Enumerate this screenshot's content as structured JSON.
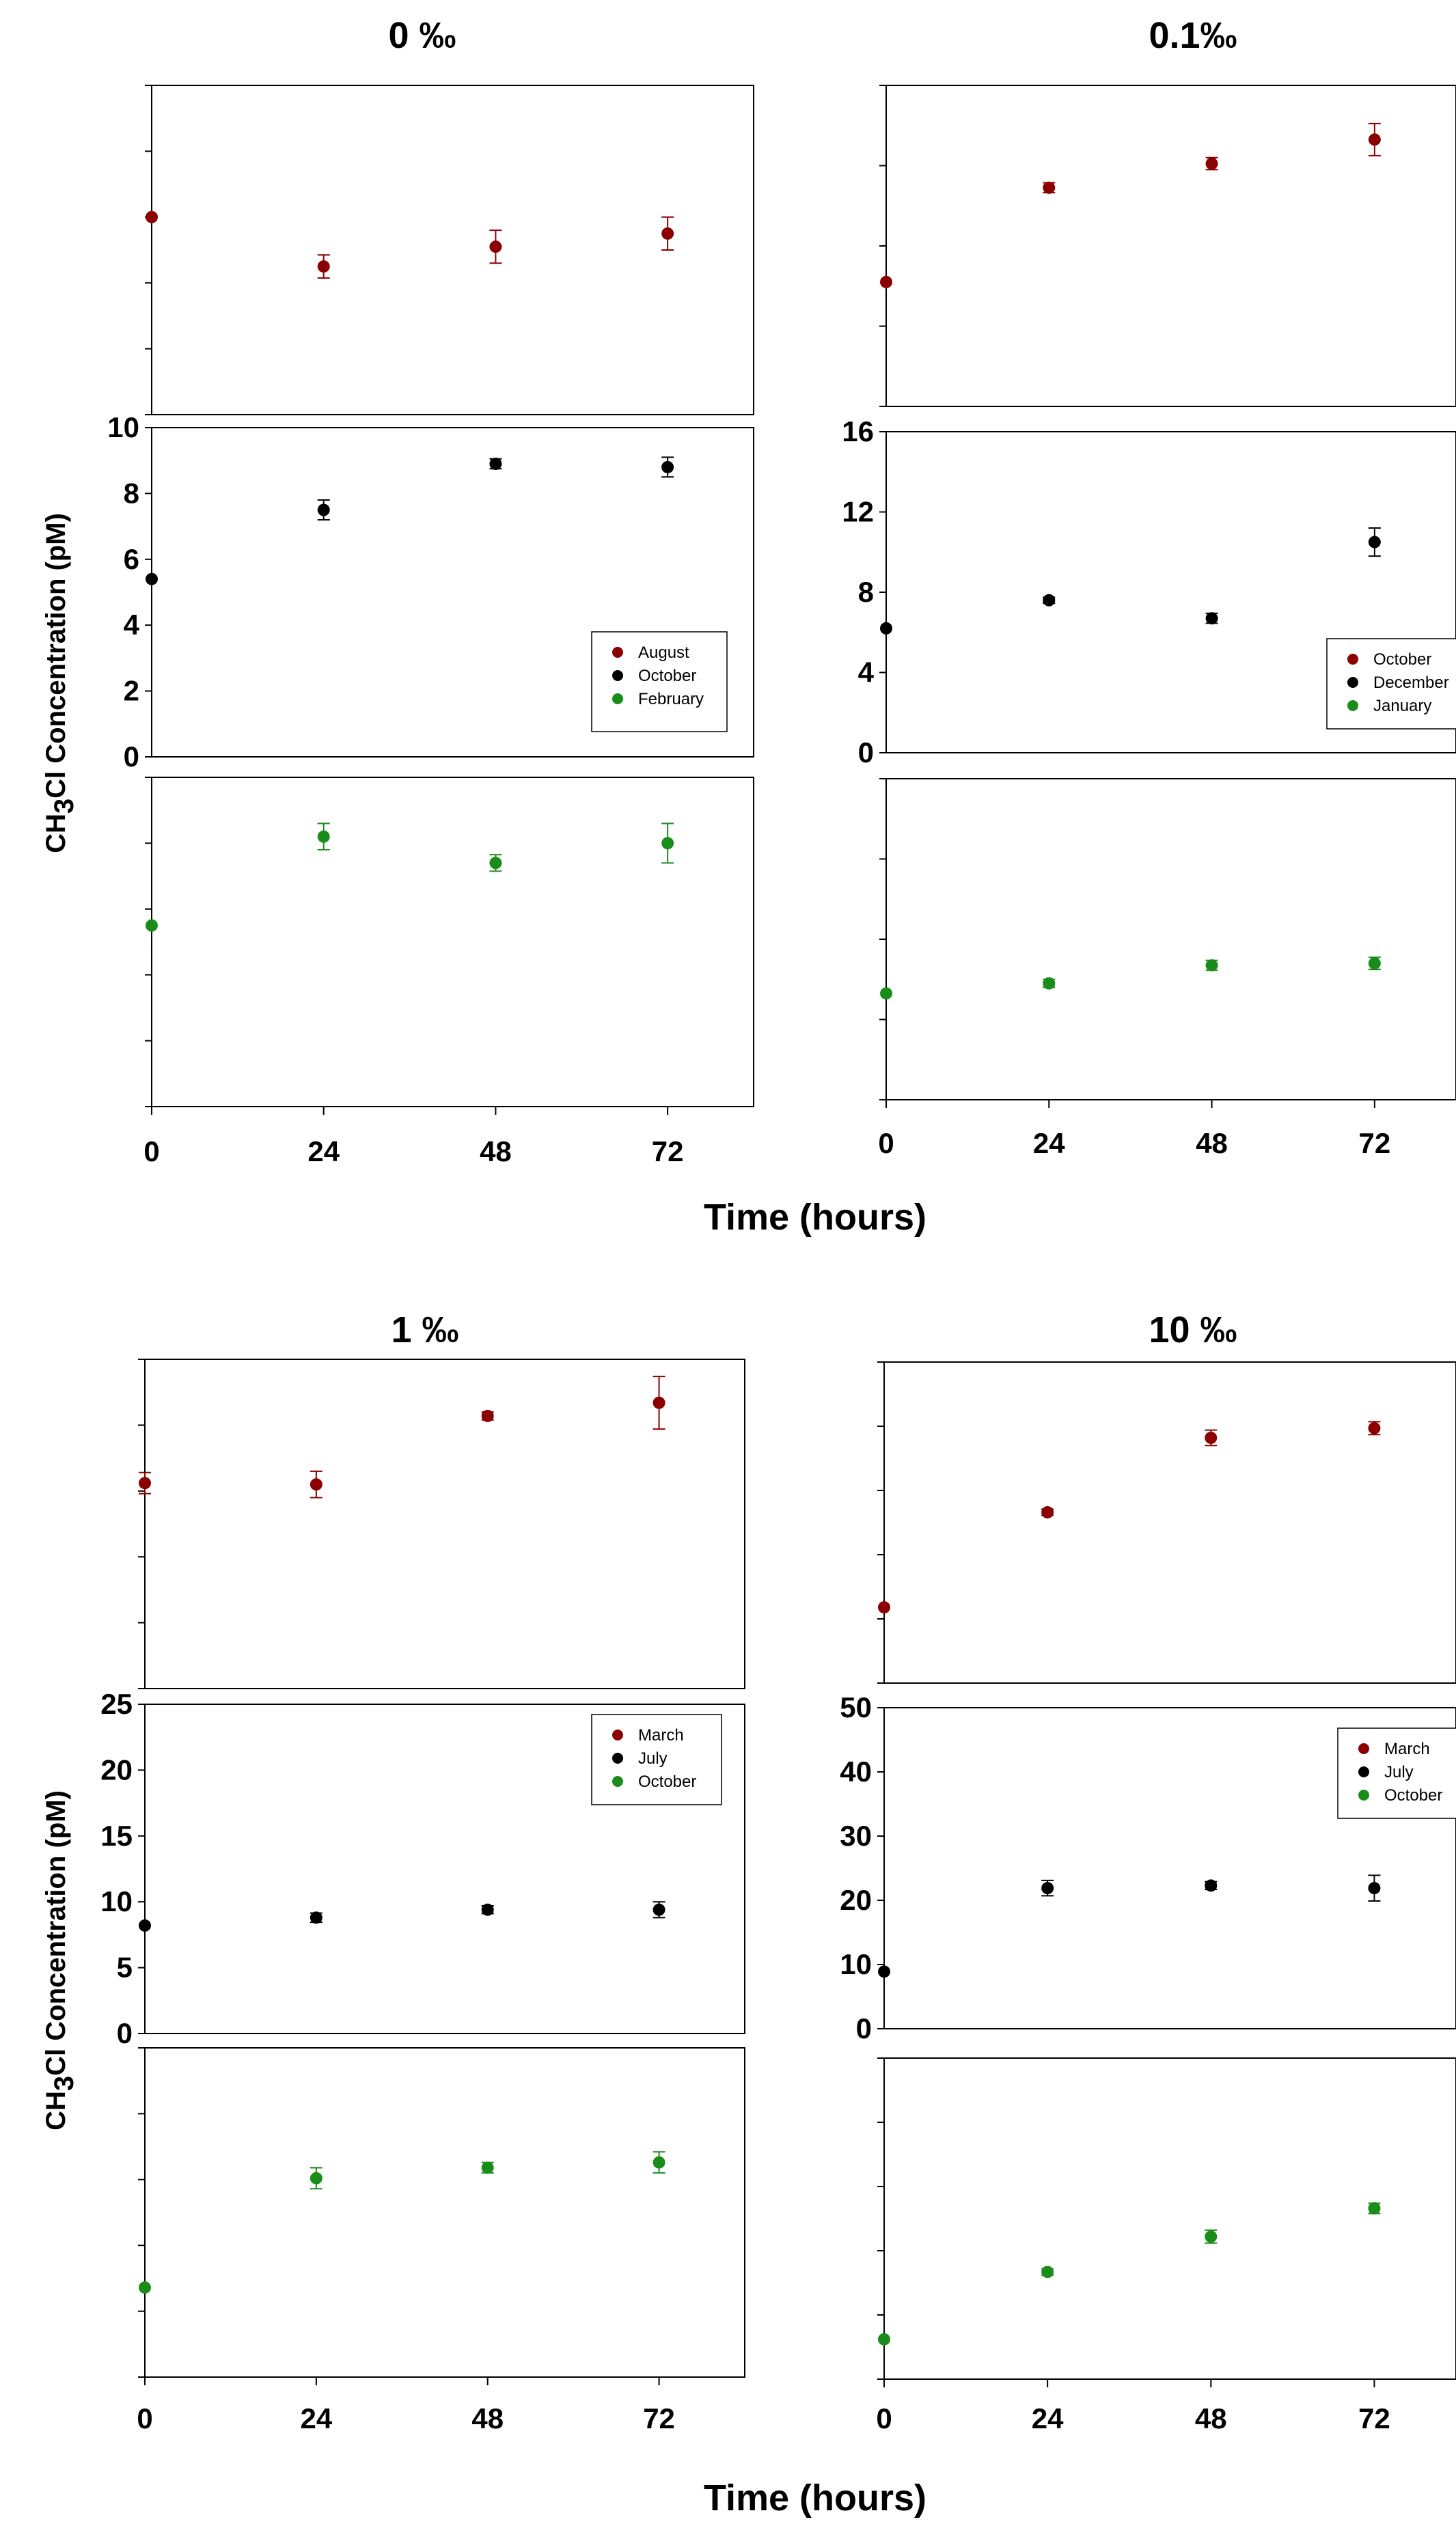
{
  "figure": {
    "ylabel_main": "CH",
    "ylabel_sub": "3",
    "ylabel_rest": "Cl Concentration (pM)",
    "xlabel": "Time (hours)",
    "colors": {
      "series1": "#8b0000",
      "series2": "#000000",
      "series3": "#1a8c1a"
    }
  },
  "chart_data": [
    {
      "type": "scatter",
      "title": "0 ‰",
      "x": [
        0,
        24,
        48,
        72
      ],
      "xticks": [
        "0",
        "24",
        "48",
        "72"
      ],
      "ylim": [
        0,
        10
      ],
      "yticks": [
        "0",
        "2",
        "4",
        "6",
        "8",
        "10"
      ],
      "series": [
        {
          "name": "August",
          "y": [
            6.0,
            4.5,
            5.1,
            5.5
          ],
          "err": [
            0.0,
            0.35,
            0.5,
            0.5
          ]
        },
        {
          "name": "October",
          "y": [
            5.4,
            7.5,
            8.9,
            8.8
          ],
          "err": [
            0.0,
            0.3,
            0.15,
            0.3
          ]
        },
        {
          "name": "February",
          "y": [
            5.5,
            8.2,
            7.4,
            8.0
          ],
          "err": [
            0.0,
            0.4,
            0.25,
            0.6
          ]
        }
      ]
    },
    {
      "type": "scatter",
      "title": "0.1‰",
      "x": [
        0,
        24,
        48,
        72
      ],
      "xticks": [
        "0",
        "24",
        "48",
        "72"
      ],
      "ylim": [
        0,
        16
      ],
      "yticks": [
        "0",
        "4",
        "8",
        "12",
        "16"
      ],
      "series": [
        {
          "name": "October",
          "y": [
            6.2,
            10.9,
            12.1,
            13.3
          ],
          "err": [
            0.0,
            0.25,
            0.3,
            0.8
          ]
        },
        {
          "name": "December",
          "y": [
            6.2,
            7.6,
            6.7,
            10.5
          ],
          "err": [
            0.0,
            0.15,
            0.25,
            0.7
          ]
        },
        {
          "name": "January",
          "y": [
            5.3,
            5.8,
            6.7,
            6.8
          ],
          "err": [
            0.0,
            0.2,
            0.25,
            0.3
          ]
        }
      ]
    },
    {
      "type": "scatter",
      "title": "1 ‰",
      "x": [
        0,
        24,
        48,
        72
      ],
      "xticks": [
        "0",
        "24",
        "48",
        "72"
      ],
      "ylim": [
        0,
        25
      ],
      "yticks": [
        "0",
        "5",
        "10",
        "15",
        "20",
        "25"
      ],
      "series": [
        {
          "name": "March",
          "y": [
            15.6,
            15.5,
            20.7,
            21.7
          ],
          "err": [
            0.8,
            1.0,
            0.3,
            2.0
          ]
        },
        {
          "name": "July",
          "y": [
            8.2,
            8.8,
            9.4,
            9.4
          ],
          "err": [
            0.0,
            0.35,
            0.3,
            0.6
          ]
        },
        {
          "name": "October",
          "y": [
            6.8,
            15.1,
            15.9,
            16.3
          ],
          "err": [
            0.0,
            0.8,
            0.4,
            0.8
          ]
        }
      ]
    },
    {
      "type": "scatter",
      "title": "10 ‰",
      "x": [
        0,
        24,
        48,
        72
      ],
      "xticks": [
        "0",
        "24",
        "48",
        "72"
      ],
      "ylim": [
        0,
        50
      ],
      "yticks": [
        "0",
        "10",
        "20",
        "30",
        "40",
        "50"
      ],
      "series": [
        {
          "name": "March",
          "y": [
            11.8,
            26.6,
            38.2,
            39.7
          ],
          "err": [
            0.0,
            0.5,
            1.2,
            1.0
          ]
        },
        {
          "name": "July",
          "y": [
            8.9,
            21.9,
            22.3,
            21.9
          ],
          "err": [
            0.0,
            1.2,
            0.6,
            2.0
          ]
        },
        {
          "name": "October",
          "y": [
            6.2,
            16.7,
            22.2,
            26.6
          ],
          "err": [
            0.0,
            0.5,
            1.0,
            0.8
          ]
        }
      ]
    }
  ]
}
